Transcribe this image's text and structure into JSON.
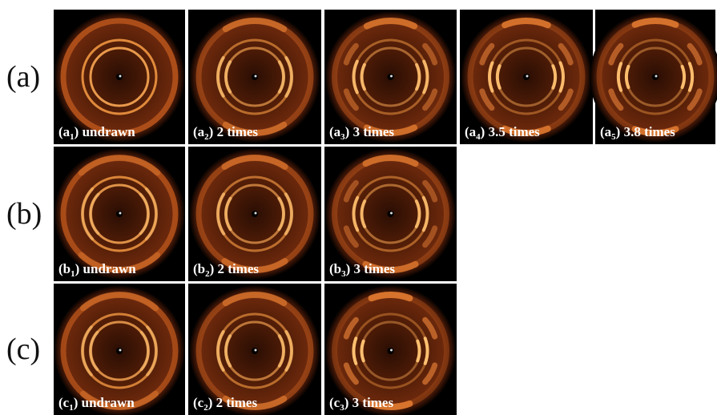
{
  "rows": [
    {
      "label": "(a)",
      "panels": [
        {
          "caption": [
            "(a",
            "1",
            ") undrawn"
          ]
        },
        {
          "caption": [
            "(a",
            "2",
            ") 2 times"
          ]
        },
        {
          "caption": [
            "(a",
            "3",
            ") 3 times"
          ]
        },
        {
          "caption": [
            "(a",
            "4",
            ") 3.5 times"
          ]
        },
        {
          "caption": [
            "(a",
            "5",
            ") 3.8 times"
          ]
        }
      ]
    },
    {
      "label": "(b)",
      "panels": [
        {
          "caption": [
            "(b",
            "1",
            ") undrawn"
          ]
        },
        {
          "caption": [
            "(b",
            "2",
            ") 2 times"
          ]
        },
        {
          "caption": [
            "(b",
            "3",
            ") 3 times"
          ]
        }
      ]
    },
    {
      "label": "(c)",
      "panels": [
        {
          "caption": [
            "(c",
            "1",
            ") undrawn"
          ]
        },
        {
          "caption": [
            "(c",
            "2",
            ") 2 times"
          ]
        },
        {
          "caption": [
            "(c",
            "3",
            ") 3 times"
          ]
        }
      ]
    }
  ]
}
